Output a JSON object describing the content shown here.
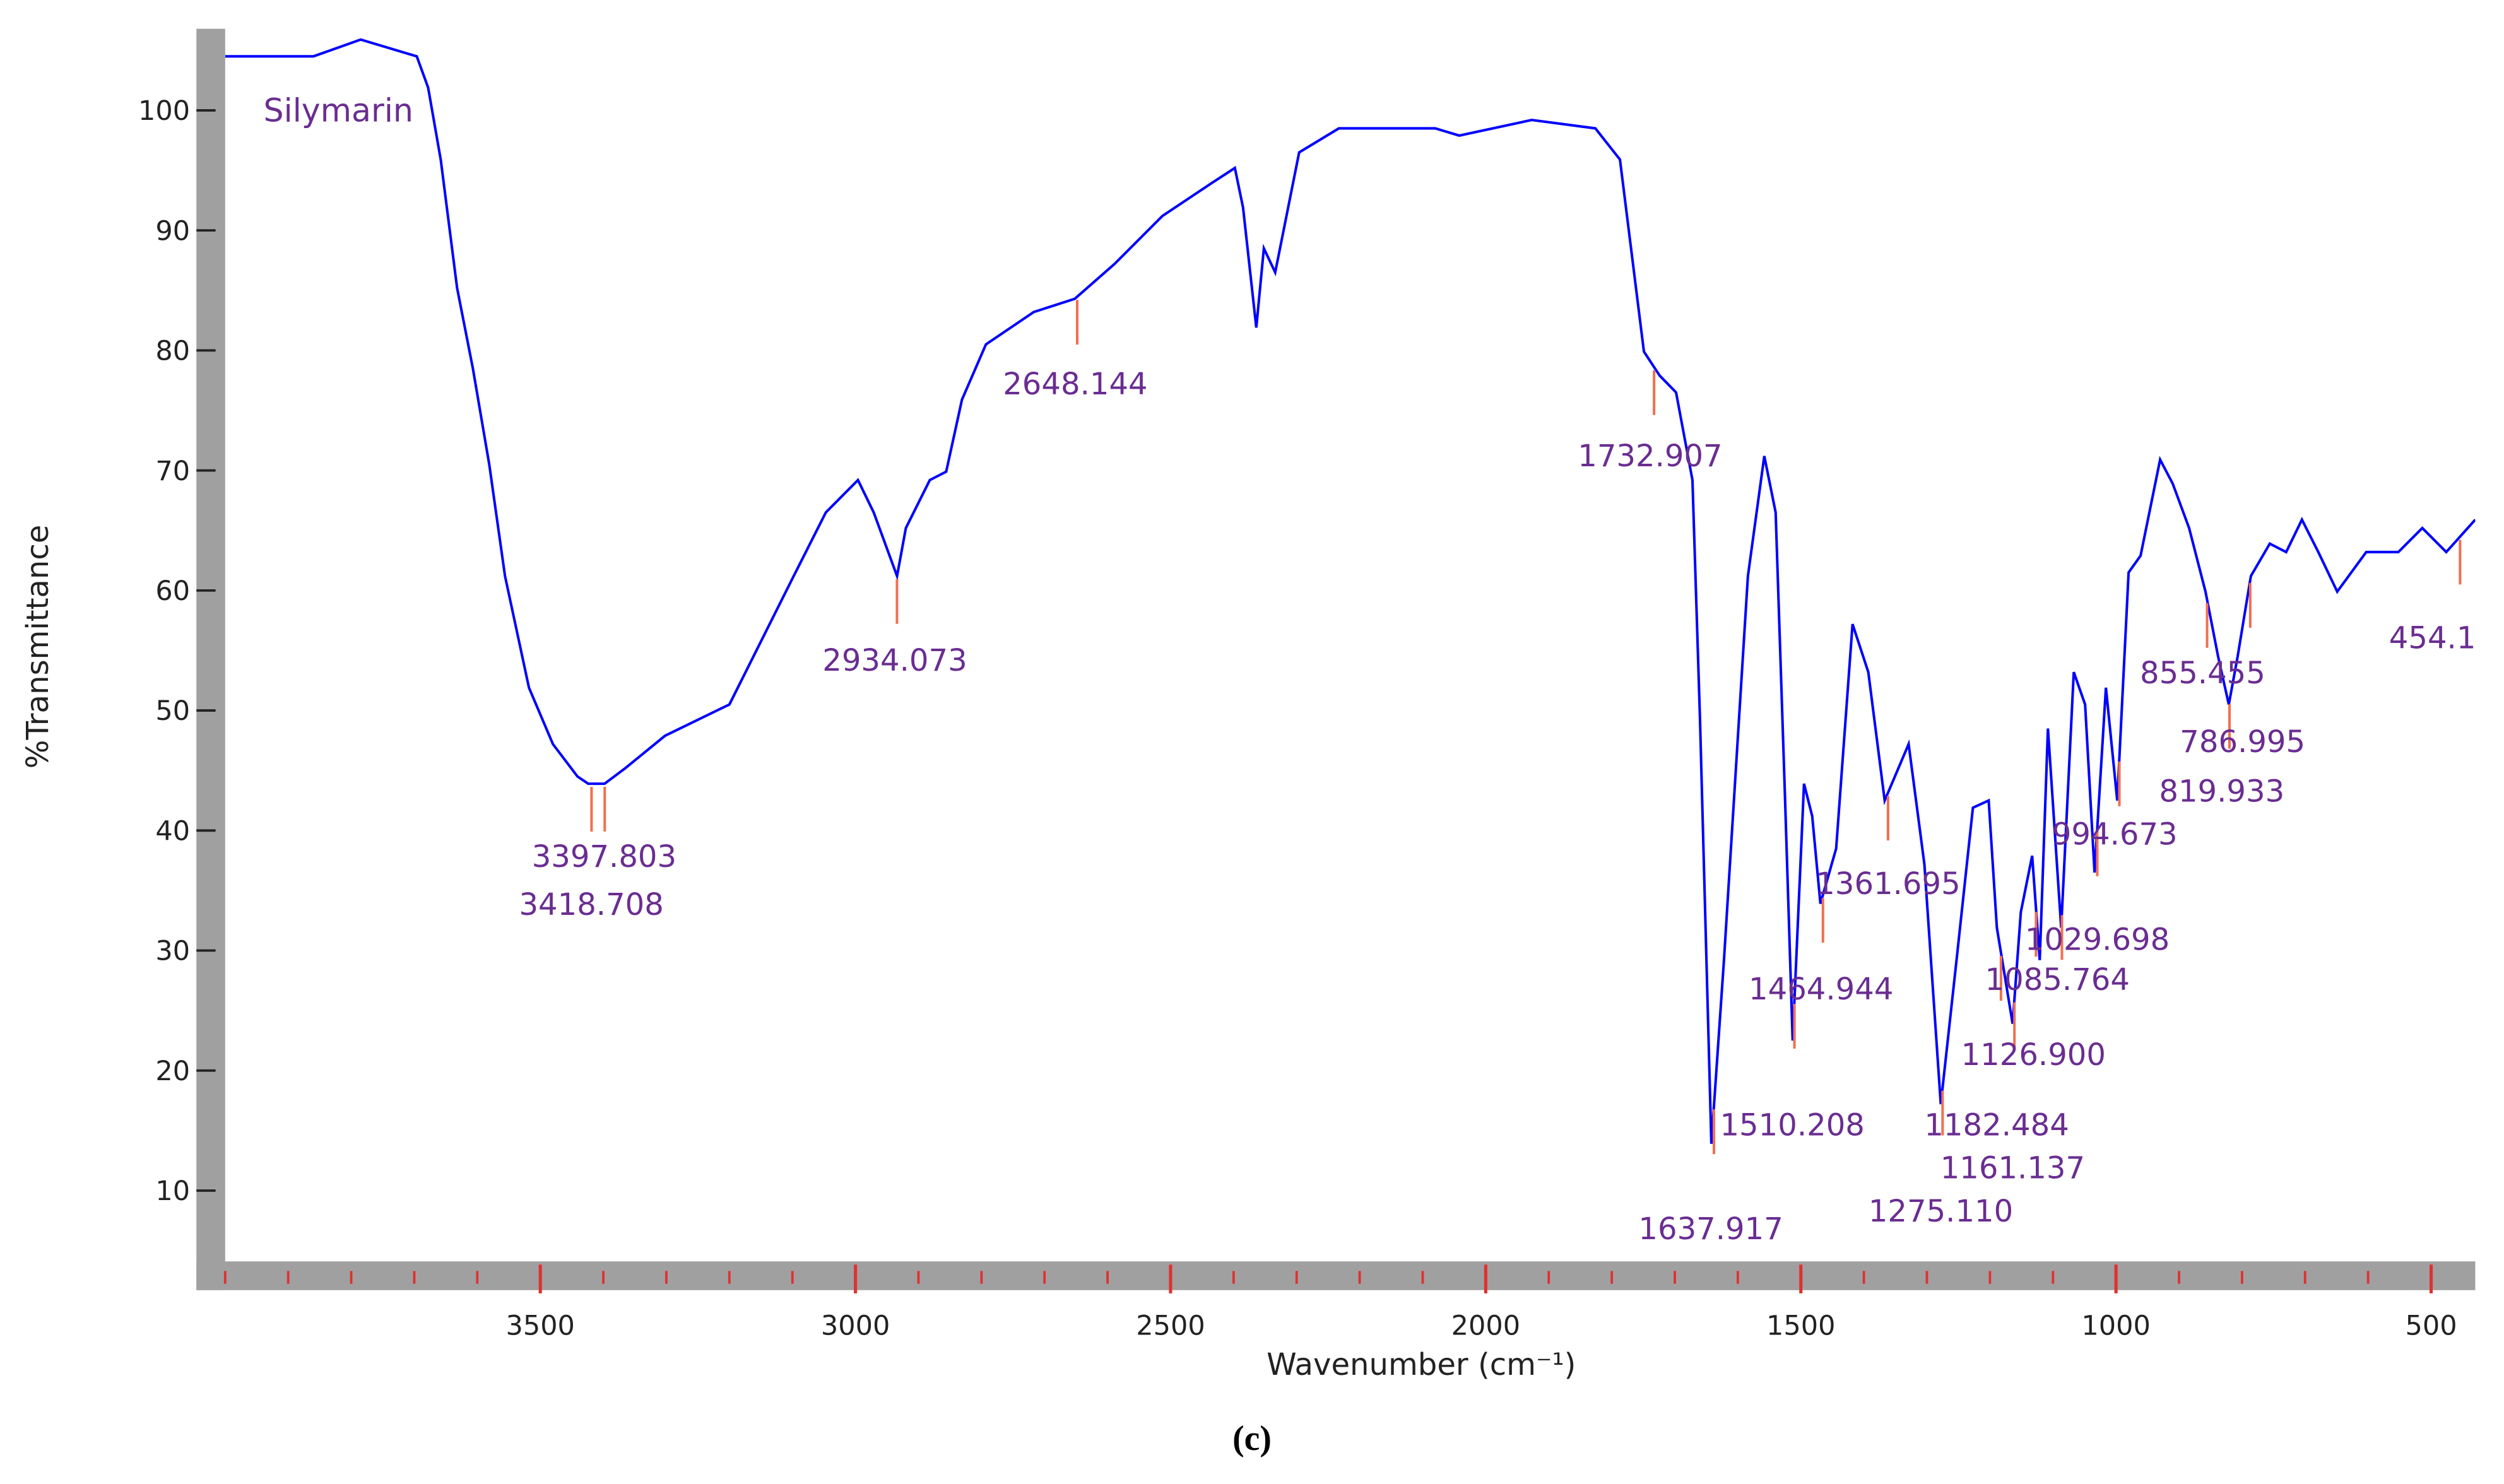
{
  "chart_data": {
    "type": "line",
    "title": "Silymarin",
    "x_label": "Wavenumber  (cm⁻¹)",
    "y_label": "%Transmittance",
    "caption": "(c)",
    "xlim": [
      4000,
      430
    ],
    "ylim": [
      4.1,
      106.8
    ],
    "xticks": [
      3500,
      3000,
      2500,
      2000,
      1500,
      1000,
      500
    ],
    "xminorticks": [
      4000,
      3900,
      3800,
      3700,
      3600,
      3500,
      3400,
      3300,
      3200,
      3100,
      3000,
      2900,
      2800,
      2700,
      2600,
      2500,
      2400,
      2300,
      2200,
      2100,
      2000,
      1900,
      1800,
      1700,
      1600,
      1500,
      1400,
      1300,
      1200,
      1100,
      1000,
      900,
      800,
      700,
      600,
      500
    ],
    "yticks": [
      10,
      20,
      30,
      40,
      50,
      60,
      70,
      80,
      90,
      100
    ],
    "series": [
      {
        "name": "Silymarin",
        "color": "#0000ff",
        "x": [
          4000,
          3860,
          3785,
          3696,
          3678,
          3658,
          3632,
          3607,
          3581,
          3556,
          3518,
          3480,
          3441,
          3424,
          3398,
          3365,
          3302,
          3200,
          3098,
          3047,
          2996,
          2971,
          2934,
          2920,
          2882,
          2856,
          2831,
          2793,
          2717,
          2652,
          2589,
          2513,
          2436,
          2398,
          2385,
          2364,
          2352,
          2334,
          2296,
          2233,
          2080,
          2042,
          1927,
          1826,
          1787,
          1749,
          1724,
          1698,
          1672,
          1660,
          1642,
          1622,
          1584,
          1558,
          1540,
          1525,
          1513,
          1495,
          1482,
          1469,
          1444,
          1418,
          1393,
          1367,
          1329,
          1304,
          1278,
          1253,
          1227,
          1202,
          1189,
          1164,
          1151,
          1133,
          1121,
          1108,
          1087,
          1067,
          1049,
          1034,
          1016,
          998,
          980,
          961,
          930,
          910,
          884,
          858,
          838,
          821,
          807,
          786,
          756,
          730,
          705,
          679,
          649,
          603,
          552,
          514,
          476,
          430
        ],
        "values": [
          104.5,
          104.5,
          105.9,
          104.5,
          101.9,
          95.9,
          85.2,
          78.5,
          70.5,
          61.2,
          51.9,
          47.2,
          44.5,
          43.9,
          43.9,
          45.2,
          47.9,
          50.5,
          61.2,
          66.5,
          69.2,
          66.5,
          61.2,
          65.2,
          69.2,
          69.9,
          75.9,
          80.5,
          83.2,
          84.3,
          87.2,
          91.2,
          93.9,
          95.2,
          91.9,
          81.9,
          88.5,
          86.5,
          96.5,
          98.5,
          98.5,
          97.9,
          99.2,
          98.5,
          95.9,
          79.9,
          77.9,
          76.5,
          69.2,
          49.2,
          13.9,
          29.2,
          61.2,
          71.2,
          66.5,
          42.5,
          22.5,
          43.9,
          41.2,
          33.9,
          38.5,
          57.2,
          53.2,
          42.5,
          47.2,
          37.2,
          17.2,
          29.2,
          41.9,
          42.5,
          31.9,
          23.9,
          33.2,
          37.9,
          29.2,
          48.5,
          31.9,
          53.2,
          50.5,
          36.5,
          51.9,
          42.5,
          61.5,
          62.9,
          70.9,
          68.9,
          65.2,
          59.9,
          54.5,
          50.5,
          54.5,
          61.2,
          63.9,
          63.2,
          65.9,
          63.2,
          59.9,
          63.2,
          63.2,
          65.2,
          63.2,
          65.9
        ]
      }
    ],
    "peaks": [
      {
        "value": 3397.803,
        "label": "3397.803"
      },
      {
        "value": 3418.708,
        "label": "3418.708"
      },
      {
        "value": 2934.073,
        "label": "2934.073"
      },
      {
        "value": 2648.144,
        "label": "2648.144"
      },
      {
        "value": 1732.907,
        "label": "1732.907"
      },
      {
        "value": 1637.917,
        "label": "1637.917"
      },
      {
        "value": 1510.208,
        "label": "1510.208"
      },
      {
        "value": 1464.944,
        "label": "1464.944"
      },
      {
        "value": 1361.695,
        "label": "1361.695"
      },
      {
        "value": 1275.11,
        "label": "1275.110"
      },
      {
        "value": 1182.484,
        "label": "1182.484"
      },
      {
        "value": 1161.137,
        "label": "1161.137"
      },
      {
        "value": 1126.9,
        "label": "1126.900"
      },
      {
        "value": 1085.764,
        "label": "1085.764"
      },
      {
        "value": 1029.698,
        "label": "1029.698"
      },
      {
        "value": 994.673,
        "label": "994.673"
      },
      {
        "value": 855.455,
        "label": "855.455"
      },
      {
        "value": 819.933,
        "label": "819.933"
      },
      {
        "value": 786.995,
        "label": "786.995"
      },
      {
        "value": 454.1,
        "label": "454.1"
      }
    ]
  }
}
